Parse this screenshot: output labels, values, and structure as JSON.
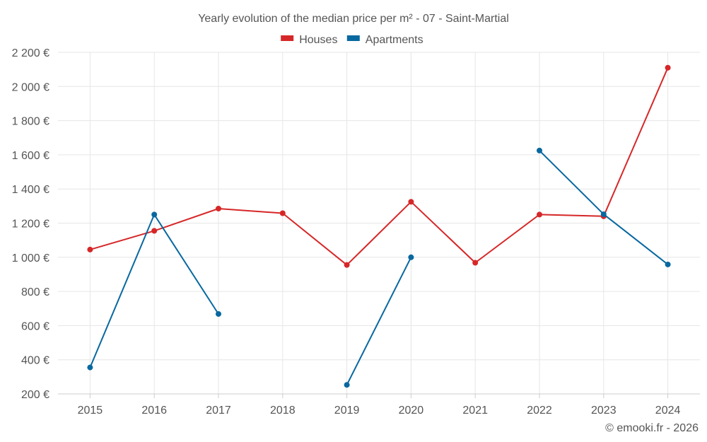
{
  "chart_data": {
    "type": "line",
    "title": "Yearly evolution of the median price per m² - 07 - Saint-Martial",
    "categories": [
      "2015",
      "2016",
      "2017",
      "2018",
      "2019",
      "2020",
      "2021",
      "2022",
      "2023",
      "2024"
    ],
    "ylim": [
      200,
      2200
    ],
    "yticks": [
      200,
      400,
      600,
      800,
      1000,
      1200,
      1400,
      1600,
      1800,
      2000,
      2200
    ],
    "ytick_labels": [
      "200 €",
      "400 €",
      "600 €",
      "800 €",
      "1 000 €",
      "1 200 €",
      "1 400 €",
      "1 600 €",
      "1 800 €",
      "2 000 €",
      "2 200 €"
    ],
    "grid": true,
    "legend_position": "top-center",
    "series": [
      {
        "name": "Houses",
        "color": "#d62728",
        "values": [
          1045,
          1155,
          1285,
          1258,
          955,
          1325,
          968,
          1250,
          1240,
          2110
        ]
      },
      {
        "name": "Apartments",
        "color": "#0868a0",
        "values": [
          355,
          1250,
          668,
          null,
          253,
          1000,
          null,
          1625,
          1252,
          958
        ]
      }
    ]
  },
  "credit": "© emooki.fr - 2026"
}
